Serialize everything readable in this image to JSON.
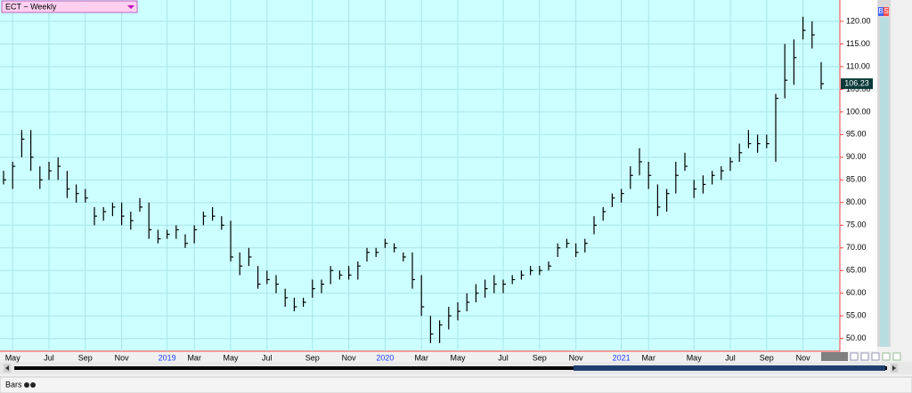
{
  "chart_data": {
    "type": "ohlc",
    "title": "ECT ~ Weekly",
    "buttons": [
      "B",
      "S"
    ],
    "footer": "Bars",
    "color": "#000000",
    "background": "#ccffff",
    "grid": true,
    "categories": [
      null,
      "May",
      null,
      null,
      null,
      "Jul",
      null,
      null,
      null,
      "Sep",
      null,
      null,
      null,
      "Nov",
      null,
      null,
      null,
      null,
      "2019",
      null,
      null,
      "Mar",
      null,
      null,
      null,
      "May",
      null,
      null,
      null,
      "Jul",
      null,
      null,
      null,
      null,
      "Sep",
      null,
      null,
      null,
      "Nov",
      null,
      null,
      null,
      "2020",
      null,
      null,
      null,
      "Mar",
      null,
      null,
      null,
      "May",
      null,
      null,
      null,
      null,
      "Jul",
      null,
      null,
      null,
      "Sep",
      null,
      null,
      null,
      "Nov",
      null,
      null,
      null,
      null,
      "2021",
      null,
      null,
      "Mar",
      null,
      null,
      null,
      null,
      "May",
      null,
      null,
      null,
      "Jul",
      null,
      null,
      null,
      "Sep",
      null,
      null,
      null,
      "Nov",
      null,
      null
    ],
    "high": [
      87,
      89,
      96,
      96,
      88,
      89,
      90,
      87,
      84,
      83,
      79,
      79,
      80,
      80,
      78,
      81,
      80,
      74,
      74,
      75,
      73,
      75,
      78,
      79,
      77,
      76,
      69,
      70,
      66,
      65,
      64,
      61,
      59,
      59,
      63,
      63,
      66,
      65,
      66,
      67,
      70,
      70,
      72,
      71,
      69,
      69,
      64,
      55,
      54,
      57,
      58,
      60,
      62,
      63,
      64,
      63,
      64,
      65,
      66,
      66,
      67,
      71,
      72,
      71,
      72,
      77,
      79,
      82,
      83,
      88,
      92,
      89,
      84,
      83,
      89,
      91,
      85,
      86,
      87,
      88,
      90,
      93,
      96,
      95,
      95,
      104,
      115,
      116,
      121,
      120,
      111
    ],
    "low": [
      84,
      83,
      90,
      87,
      83,
      85,
      85,
      81,
      80,
      80,
      75,
      76,
      77,
      75,
      74,
      78,
      72,
      71,
      72,
      72,
      70,
      71,
      75,
      76,
      74,
      67,
      64,
      66,
      61,
      62,
      60,
      57,
      56,
      57,
      59,
      60,
      62,
      63,
      63,
      63,
      67,
      68,
      70,
      69,
      67,
      61,
      55,
      49,
      49,
      52,
      54,
      56,
      58,
      59,
      60,
      60,
      62,
      63,
      64,
      64,
      65,
      68,
      70,
      68,
      69,
      73,
      76,
      79,
      80,
      83,
      86,
      83,
      77,
      78,
      82,
      87,
      81,
      82,
      84,
      85,
      87,
      89,
      92,
      91,
      92,
      89,
      103,
      106,
      116,
      114,
      105
    ],
    "close": [
      85,
      88,
      94,
      90,
      85,
      87,
      88,
      83,
      82,
      81,
      77,
      78,
      79,
      77,
      76,
      79,
      74,
      72,
      73,
      74,
      71,
      74,
      77,
      77,
      75,
      68,
      66,
      68,
      62,
      63,
      62,
      59,
      57,
      58,
      61,
      62,
      65,
      64,
      64,
      66,
      69,
      69,
      71,
      70,
      68,
      63,
      57,
      51,
      53,
      55,
      56,
      58,
      60,
      61,
      62,
      62,
      63,
      64,
      65,
      65,
      66,
      70,
      71,
      69,
      71,
      75,
      78,
      81,
      82,
      86,
      89,
      86,
      79,
      82,
      86,
      88,
      83,
      84,
      86,
      87,
      89,
      91,
      93,
      93,
      93,
      103,
      107,
      112,
      118,
      117,
      106.23
    ],
    "ylim": [
      47.2,
      124.7
    ],
    "yticks": [
      {
        "value": 50,
        "label": "50.00"
      },
      {
        "value": 55,
        "label": "55.00"
      },
      {
        "value": 60,
        "label": "60.00"
      },
      {
        "value": 65,
        "label": "65.00"
      },
      {
        "value": 70,
        "label": "70.00"
      },
      {
        "value": 75,
        "label": "75.00"
      },
      {
        "value": 80,
        "label": "80.00"
      },
      {
        "value": 85,
        "label": "85.00"
      },
      {
        "value": 90,
        "label": "90.00"
      },
      {
        "value": 95,
        "label": "95.00"
      },
      {
        "value": 100,
        "label": "100.00"
      },
      {
        "value": 105,
        "label": "105.00"
      },
      {
        "value": 110,
        "label": "110.00"
      },
      {
        "value": 115,
        "label": "115.00"
      },
      {
        "value": 120,
        "label": "120.00"
      }
    ]
  }
}
